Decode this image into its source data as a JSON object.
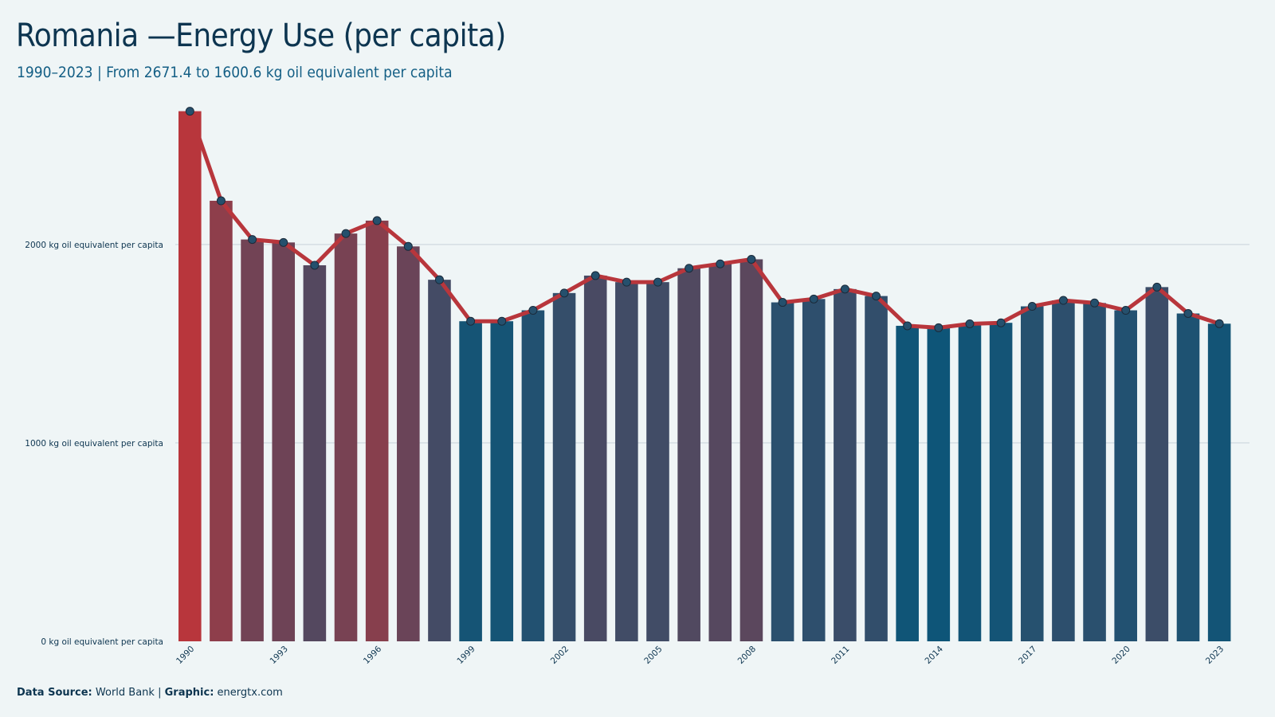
{
  "header": {
    "title": "Romania —Energy Use (per capita)",
    "subtitle": "1990–2023 | From 2671.4 to 1600.6 kg oil equivalent per capita"
  },
  "footer": {
    "source_label": "Data Source:",
    "source_value": "World Bank",
    "separator": "|",
    "graphic_label": "Graphic:",
    "graphic_value": "energtx.com"
  },
  "colors": {
    "high": "#b8363c",
    "low": "#0e5578",
    "line": "#b8363c",
    "marker": "#25506d",
    "grid": "#d5dee3",
    "text": "#0d3550"
  },
  "chart_data": {
    "type": "bar",
    "title": "Romania —Energy Use (per capita)",
    "subtitle": "1990–2023 | From 2671.4 to 1600.6 kg oil equivalent per capita",
    "xlabel": "",
    "ylabel": "",
    "unit": "kg oil equivalent per capita",
    "ylim": [
      0,
      2750
    ],
    "yticks": [
      {
        "value": 0,
        "label": "0 kg oil equivalent per capita"
      },
      {
        "value": 1000,
        "label": "1000 kg oil equivalent per capita"
      },
      {
        "value": 2000,
        "label": "2000 kg oil equivalent per capita"
      }
    ],
    "xtick_labels": [
      "1990",
      "1993",
      "1996",
      "1999",
      "2002",
      "2005",
      "2008",
      "2011",
      "2014",
      "2017",
      "2020",
      "2023"
    ],
    "grid": true,
    "legend": "none",
    "overlay": "line with markers through bar tops",
    "categories": [
      "1990",
      "1991",
      "1992",
      "1993",
      "1994",
      "1995",
      "1996",
      "1997",
      "1998",
      "1999",
      "2000",
      "2001",
      "2002",
      "2003",
      "2004",
      "2005",
      "2006",
      "2007",
      "2008",
      "2009",
      "2010",
      "2011",
      "2012",
      "2013",
      "2014",
      "2015",
      "2016",
      "2017",
      "2018",
      "2019",
      "2020",
      "2021",
      "2022",
      "2023"
    ],
    "values": [
      2671.4,
      2220,
      2025,
      2010,
      1895,
      2055,
      2120,
      1990,
      1822,
      1613,
      1613,
      1668,
      1755,
      1843,
      1810,
      1810,
      1880,
      1902,
      1925,
      1708,
      1725,
      1775,
      1740,
      1590,
      1580,
      1600,
      1605,
      1688,
      1718,
      1705,
      1668,
      1785,
      1652,
      1600.6
    ]
  }
}
